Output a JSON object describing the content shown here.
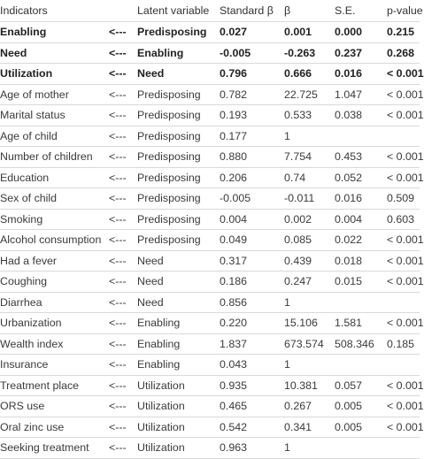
{
  "headers": {
    "indicators": "Indicators",
    "arrow": "",
    "latent": "Latent variable",
    "std_beta": "Standard β",
    "beta": "β",
    "se": "S.E.",
    "p": "p-value"
  },
  "rows": [
    {
      "indicator": "Enabling",
      "arrow": "<---",
      "latent": "Predisposing",
      "std_beta": "0.027",
      "beta": "0.001",
      "se": "0.000",
      "p": "0.215",
      "bold": true
    },
    {
      "indicator": "Need",
      "arrow": "<---",
      "latent": "Enabling",
      "std_beta": "-0.005",
      "beta": "-0.263",
      "se": "0.237",
      "p": "0.268",
      "bold": true
    },
    {
      "indicator": "Utilization",
      "arrow": "<---",
      "latent": "Need",
      "std_beta": "0.796",
      "beta": "0.666",
      "se": "0.016",
      "p": "< 0.001",
      "bold": true
    },
    {
      "indicator": "Age of mother",
      "arrow": "<---",
      "latent": "Predisposing",
      "std_beta": "0.782",
      "beta": "22.725",
      "se": "1.047",
      "p": "< 0.001",
      "bold": false
    },
    {
      "indicator": "Marital status",
      "arrow": "<---",
      "latent": "Predisposing",
      "std_beta": "0.193",
      "beta": "0.533",
      "se": "0.038",
      "p": "< 0.001",
      "bold": false
    },
    {
      "indicator": "Age of child",
      "arrow": "<---",
      "latent": "Predisposing",
      "std_beta": "0.177",
      "beta": "1",
      "se": "",
      "p": "",
      "bold": false
    },
    {
      "indicator": "Number of children",
      "arrow": "<---",
      "latent": "Predisposing",
      "std_beta": "0.880",
      "beta": "7.754",
      "se": "0.453",
      "p": "< 0.001",
      "bold": false
    },
    {
      "indicator": "Education",
      "arrow": "<---",
      "latent": "Predisposing",
      "std_beta": "0.206",
      "beta": "0.74",
      "se": "0.052",
      "p": "< 0.001",
      "bold": false
    },
    {
      "indicator": "Sex of child",
      "arrow": "<---",
      "latent": "Predisposing",
      "std_beta": "-0.005",
      "beta": "-0.011",
      "se": "0.016",
      "p": "0.509",
      "bold": false
    },
    {
      "indicator": "Smoking",
      "arrow": "<---",
      "latent": "Predisposing",
      "std_beta": "0.004",
      "beta": "0.002",
      "se": "0.004",
      "p": "0.603",
      "bold": false
    },
    {
      "indicator": "Alcohol consumption",
      "arrow": "<---",
      "latent": "Predisposing",
      "std_beta": "0.049",
      "beta": "0.085",
      "se": "0.022",
      "p": "< 0.001",
      "bold": false
    },
    {
      "indicator": "Had a fever",
      "arrow": "<---",
      "latent": "Need",
      "std_beta": "0.317",
      "beta": "0.439",
      "se": "0.018",
      "p": "< 0.001",
      "bold": false
    },
    {
      "indicator": "Coughing",
      "arrow": "<---",
      "latent": "Need",
      "std_beta": "0.186",
      "beta": "0.247",
      "se": "0.015",
      "p": "< 0.001",
      "bold": false
    },
    {
      "indicator": "Diarrhea",
      "arrow": "<---",
      "latent": "Need",
      "std_beta": "0.856",
      "beta": "1",
      "se": "",
      "p": "",
      "bold": false
    },
    {
      "indicator": "Urbanization",
      "arrow": "<---",
      "latent": "Enabling",
      "std_beta": "0.220",
      "beta": "15.106",
      "se": "1.581",
      "p": "< 0.001",
      "bold": false
    },
    {
      "indicator": "Wealth index",
      "arrow": "<---",
      "latent": "Enabling",
      "std_beta": "1.837",
      "beta": "673.574",
      "se": "508.346",
      "p": "0.185",
      "bold": false
    },
    {
      "indicator": "Insurance",
      "arrow": "<---",
      "latent": "Enabling",
      "std_beta": "0.043",
      "beta": "1",
      "se": "",
      "p": "",
      "bold": false
    },
    {
      "indicator": "Treatment place",
      "arrow": "<---",
      "latent": "Utilization",
      "std_beta": "0.935",
      "beta": "10.381",
      "se": "0.057",
      "p": "< 0.001",
      "bold": false
    },
    {
      "indicator": "ORS use",
      "arrow": "<---",
      "latent": "Utilization",
      "std_beta": "0.465",
      "beta": "0.267",
      "se": "0.005",
      "p": "< 0.001",
      "bold": false
    },
    {
      "indicator": "Oral zinc use",
      "arrow": "<---",
      "latent": "Utilization",
      "std_beta": "0.542",
      "beta": "0.341",
      "se": "0.005",
      "p": "< 0.001",
      "bold": false
    },
    {
      "indicator": "Seeking treatment",
      "arrow": "<---",
      "latent": "Utilization",
      "std_beta": "0.963",
      "beta": "1",
      "se": "",
      "p": "",
      "bold": false
    }
  ]
}
